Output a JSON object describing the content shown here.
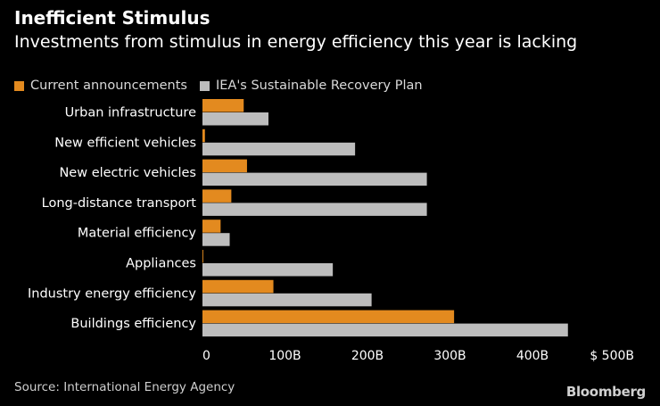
{
  "colors": {
    "background": "#000000",
    "current": "#E38A1F",
    "iea": "#BDBDBD",
    "text": "#FFFFFF",
    "muted": "#D9D9D9"
  },
  "header": {
    "title": "Inefficient Stimulus",
    "subtitle": "Investments from stimulus in energy efficiency this year is lacking"
  },
  "legend": {
    "current_label": "Current announcements",
    "iea_label": "IEA's Sustainable Recovery Plan"
  },
  "chart_data": {
    "type": "bar",
    "orientation": "horizontal",
    "title": "Inefficient Stimulus",
    "subtitle": "Investments from stimulus in energy efficiency this year is lacking",
    "categories": [
      "Urban infrastructure",
      "New efficient vehicles",
      "New electric vehicles",
      "Long-distance transport",
      "Material efficiency",
      "Appliances",
      "Industry energy efficiency",
      "Buildings efficiency"
    ],
    "series": [
      {
        "name": "Current announcements",
        "color": "#E38A1F",
        "values": [
          50,
          3,
          54,
          35,
          22,
          1,
          86,
          305
        ]
      },
      {
        "name": "IEA's Sustainable Recovery Plan",
        "color": "#BDBDBD",
        "values": [
          80,
          185,
          272,
          272,
          33,
          158,
          205,
          443
        ]
      }
    ],
    "xlim": [
      0,
      500
    ],
    "xticks": [
      0,
      100,
      200,
      300,
      400,
      500
    ],
    "xtick_labels": [
      "0",
      "100B",
      "200B",
      "300B",
      "400B",
      "$ 500B"
    ],
    "xlabel": "",
    "ylabel": "",
    "grid": false,
    "legend_position": "top-left"
  },
  "footer": {
    "source": "Source: International Energy Agency",
    "brand": "Bloomberg"
  }
}
